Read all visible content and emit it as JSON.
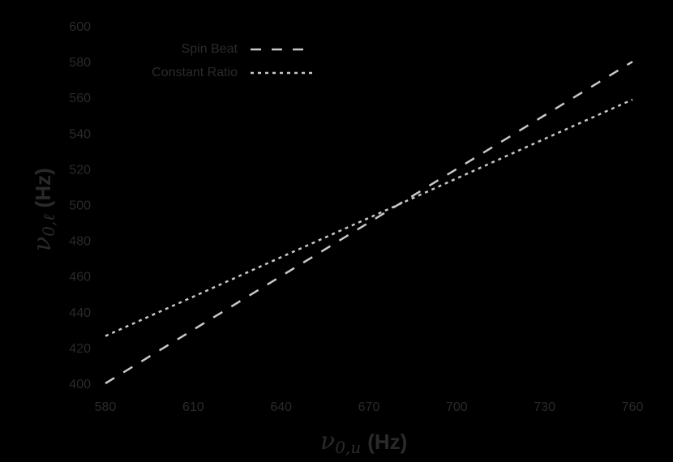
{
  "chart_data": {
    "type": "line",
    "title": "",
    "xlabel": "ν0,u (Hz)",
    "ylabel": "ν0,ℓ (Hz)",
    "xlim": [
      580,
      760
    ],
    "ylim": [
      400,
      600
    ],
    "xticks": [
      580,
      610,
      640,
      670,
      700,
      730,
      760
    ],
    "yticks": [
      400,
      420,
      440,
      460,
      480,
      500,
      520,
      540,
      560,
      580,
      600
    ],
    "grid": false,
    "legend_position": "upper left",
    "series": [
      {
        "name": "Spin Beat",
        "style": "dashed",
        "color": "#c8c8c8",
        "x": [
          580,
          610,
          640,
          670,
          700,
          730,
          760
        ],
        "y": [
          400,
          430,
          460,
          490,
          520,
          550,
          580
        ]
      },
      {
        "name": "Constant Ratio",
        "style": "dotted",
        "color": "#c8c8c8",
        "x": [
          580,
          610,
          640,
          670,
          700,
          730,
          760
        ],
        "y": [
          426.5,
          448.5,
          470.6,
          492.6,
          514.7,
          536.8,
          558.8
        ]
      }
    ]
  },
  "legend": {
    "items": [
      {
        "label": "Spin Beat"
      },
      {
        "label": "Constant Ratio"
      }
    ]
  },
  "axes": {
    "x_label_math": "ν",
    "x_label_sub": "0,u",
    "x_label_unit": "(Hz)",
    "y_label_math": "ν",
    "y_label_sub": "0,ℓ",
    "y_label_unit": "(Hz)"
  }
}
